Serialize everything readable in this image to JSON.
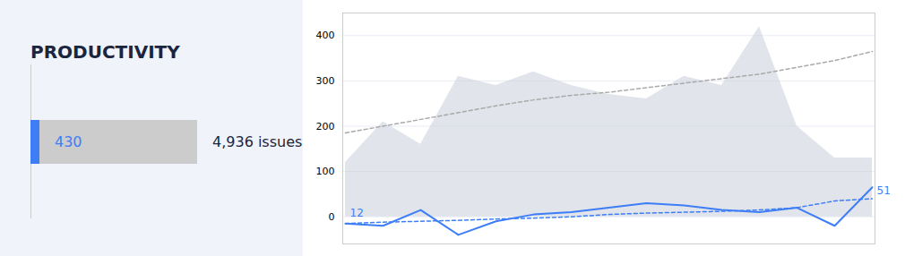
{
  "chart_data": {
    "type": "line",
    "title": "PRODUCTIVITY",
    "categories": [
      null,
      null,
      null,
      null,
      null,
      null,
      null,
      null,
      null,
      null,
      null,
      null,
      null,
      null,
      null
    ],
    "series": [
      {
        "type": "area",
        "color": "#c8cdd8",
        "values": [
          120,
          210,
          160,
          310,
          290,
          320,
          290,
          270,
          260,
          310,
          290,
          420,
          200,
          130,
          130
        ]
      },
      {
        "type": "line",
        "line_style": "dashed",
        "color": "#aaaaaa",
        "values": [
          185,
          200,
          215,
          230,
          245,
          258,
          268,
          275,
          285,
          295,
          305,
          315,
          330,
          345,
          365
        ]
      },
      {
        "type": "line",
        "line_style": "dashed",
        "color": "#3d7ef7",
        "values": [
          -15,
          -12,
          -10,
          -8,
          -5,
          -3,
          0,
          5,
          8,
          10,
          12,
          15,
          20,
          35,
          40
        ]
      },
      {
        "type": "line",
        "line_style": "solid",
        "color": "#3d7ef7",
        "values": [
          -15,
          -20,
          15,
          -40,
          -10,
          5,
          10,
          20,
          30,
          25,
          15,
          10,
          20,
          -20,
          65
        ]
      }
    ],
    "annotations": [
      {
        "text": "430",
        "color": "#3d7ef7"
      },
      {
        "text": "4,936 issues"
      },
      {
        "text": "12",
        "x": 0,
        "y": -15,
        "color": "#3d7ef7"
      },
      {
        "text": "51",
        "x": 14,
        "y": 65,
        "color": "#3d7ef7"
      }
    ],
    "ylim": [
      -60,
      450
    ],
    "yticks": [
      0,
      100,
      200,
      300,
      400
    ],
    "grid": true,
    "tick_labels": "y"
  }
}
